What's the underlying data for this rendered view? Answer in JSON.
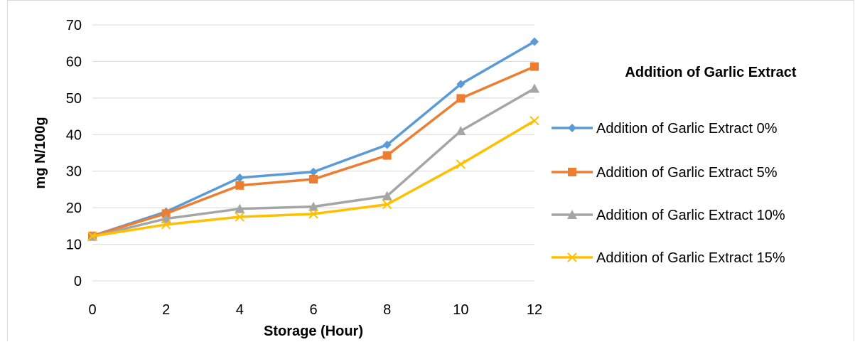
{
  "chart_data": {
    "type": "line",
    "title": "",
    "xlabel": "Storage (Hour)",
    "ylabel": "mg N/100g",
    "x": [
      0,
      2,
      4,
      6,
      8,
      10,
      12
    ],
    "xlim": [
      0,
      12
    ],
    "ylim": [
      0,
      70
    ],
    "y_ticks": [
      0,
      10,
      20,
      30,
      40,
      50,
      60,
      70
    ],
    "grid": "horizontal",
    "legend": {
      "title": "Addition of Garlic Extract",
      "placement": "right"
    },
    "series": [
      {
        "name": "Addition of Garlic Extract 0%",
        "color": "#5B9BD5",
        "marker": "diamond",
        "values": [
          12.3,
          18.9,
          28.2,
          29.8,
          37.2,
          53.8,
          65.4
        ]
      },
      {
        "name": "Addition of Garlic Extract 5%",
        "color": "#ED7D31",
        "marker": "square",
        "values": [
          12.3,
          18.4,
          26.1,
          27.8,
          34.3,
          49.9,
          58.6
        ]
      },
      {
        "name": "Addition of Garlic Extract 10%",
        "color": "#A5A5A5",
        "marker": "triangle",
        "values": [
          12.1,
          17.0,
          19.7,
          20.3,
          23.2,
          41.0,
          52.6
        ]
      },
      {
        "name": "Addition of Garlic Extract 15%",
        "color": "#FFC000",
        "marker": "x",
        "values": [
          12.2,
          15.4,
          17.5,
          18.3,
          20.9,
          31.9,
          43.8
        ]
      }
    ]
  }
}
